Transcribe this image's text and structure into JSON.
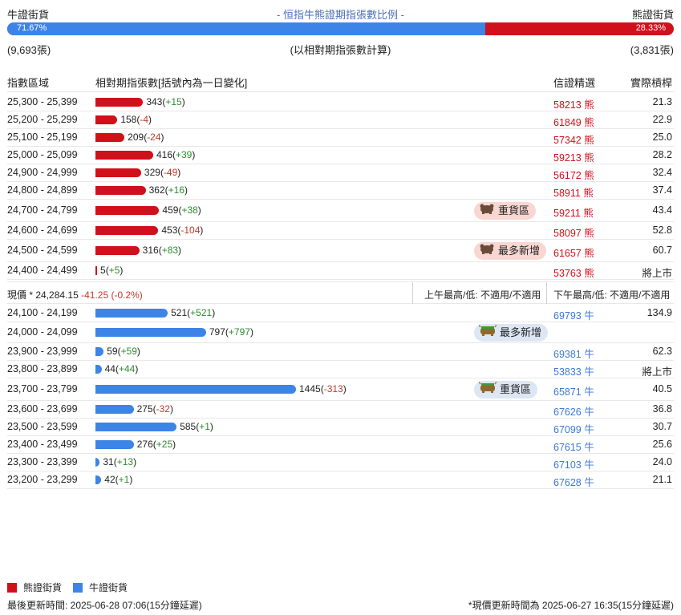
{
  "header": {
    "bull_label": "牛證街貨",
    "title": "- 恒指牛熊證期指張數比例 -",
    "bear_label": "熊證街貨",
    "bull_pct_text": "71.67%",
    "bear_pct_text": "28.33%",
    "bull_fraction": 0.7167,
    "bull_count": "(9,693張)",
    "note": "(以相對期指張數計算)",
    "bear_count": "(3,831張)"
  },
  "columns": {
    "range": "指數區域",
    "contracts": "相對期指張數[括號內為一日變化]",
    "warrant": "信證精選",
    "leverage": "實際槓桿"
  },
  "colors": {
    "bear": "#d0101b",
    "bull": "#3c84e8",
    "positive": "#2e8b2e",
    "negative": "#c0392b"
  },
  "bear_rows": [
    {
      "range": "25,300 - 25,399",
      "value": 343,
      "amount": "343",
      "change": "+15",
      "code": "58213",
      "type": "熊",
      "leverage": "21.3",
      "badge": ""
    },
    {
      "range": "25,200 - 25,299",
      "value": 158,
      "amount": "158",
      "change": "-4",
      "code": "61849",
      "type": "熊",
      "leverage": "22.9",
      "badge": ""
    },
    {
      "range": "25,100 - 25,199",
      "value": 209,
      "amount": "209",
      "change": "-24",
      "code": "57342",
      "type": "熊",
      "leverage": "25.0",
      "badge": ""
    },
    {
      "range": "25,000 - 25,099",
      "value": 416,
      "amount": "416",
      "change": "+39",
      "code": "59213",
      "type": "熊",
      "leverage": "28.2",
      "badge": ""
    },
    {
      "range": "24,900 - 24,999",
      "value": 329,
      "amount": "329",
      "change": "-49",
      "code": "56172",
      "type": "熊",
      "leverage": "32.4",
      "badge": ""
    },
    {
      "range": "24,800 - 24,899",
      "value": 362,
      "amount": "362",
      "change": "+16",
      "code": "58911",
      "type": "熊",
      "leverage": "37.4",
      "badge": ""
    },
    {
      "range": "24,700 - 24,799",
      "value": 459,
      "amount": "459",
      "change": "+38",
      "code": "59211",
      "type": "熊",
      "leverage": "43.4",
      "badge": "重貨區"
    },
    {
      "range": "24,600 - 24,699",
      "value": 453,
      "amount": "453",
      "change": "-104",
      "code": "58097",
      "type": "熊",
      "leverage": "52.8",
      "badge": ""
    },
    {
      "range": "24,500 - 24,599",
      "value": 316,
      "amount": "316",
      "change": "+83",
      "code": "61657",
      "type": "熊",
      "leverage": "60.7",
      "badge": "最多新增"
    },
    {
      "range": "24,400 - 24,499",
      "value": 5,
      "amount": "5",
      "change": "+5",
      "code": "53763",
      "type": "熊",
      "leverage": "將上市",
      "badge": ""
    }
  ],
  "price": {
    "label": "現價 *",
    "value": "24,284.15",
    "change": "-41.25 (-0.2%)",
    "am": "上午最高/低: 不適用/不適用",
    "pm": "下午最高/低: 不適用/不適用"
  },
  "bull_rows": [
    {
      "range": "24,100 - 24,199",
      "value": 521,
      "amount": "521",
      "change": "+521",
      "code": "69793",
      "type": "牛",
      "leverage": "134.9",
      "badge": ""
    },
    {
      "range": "24,000 - 24,099",
      "value": 797,
      "amount": "797",
      "change": "+797",
      "code": "",
      "type": "",
      "leverage": "",
      "badge": "最多新增"
    },
    {
      "range": "23,900 - 23,999",
      "value": 59,
      "amount": "59",
      "change": "+59",
      "code": "69381",
      "type": "牛",
      "leverage": "62.3",
      "badge": ""
    },
    {
      "range": "23,800 - 23,899",
      "value": 44,
      "amount": "44",
      "change": "+44",
      "code": "53833",
      "type": "牛",
      "leverage": "將上市",
      "badge": ""
    },
    {
      "range": "23,700 - 23,799",
      "value": 1445,
      "amount": "1445",
      "change": "-313",
      "code": "65871",
      "type": "牛",
      "leverage": "40.5",
      "badge": "重貨區"
    },
    {
      "range": "23,600 - 23,699",
      "value": 275,
      "amount": "275",
      "change": "-32",
      "code": "67626",
      "type": "牛",
      "leverage": "36.8",
      "badge": ""
    },
    {
      "range": "23,500 - 23,599",
      "value": 585,
      "amount": "585",
      "change": "+1",
      "code": "67099",
      "type": "牛",
      "leverage": "30.7",
      "badge": ""
    },
    {
      "range": "23,400 - 23,499",
      "value": 276,
      "amount": "276",
      "change": "+25",
      "code": "67615",
      "type": "牛",
      "leverage": "25.6",
      "badge": ""
    },
    {
      "range": "23,300 - 23,399",
      "value": 31,
      "amount": "31",
      "change": "+13",
      "code": "67103",
      "type": "牛",
      "leverage": "24.0",
      "badge": ""
    },
    {
      "range": "23,200 - 23,299",
      "value": 42,
      "amount": "42",
      "change": "+1",
      "code": "67628",
      "type": "牛",
      "leverage": "21.1",
      "badge": ""
    }
  ],
  "legend": {
    "bear": "熊證街貨",
    "bull": "牛證街貨"
  },
  "footer": {
    "updated": "最後更新時間: 2025-06-28 07:06(15分鐘延遲)",
    "price_updated": "*現價更新時間為 2025-06-27 16:35(15分鐘延遲)"
  }
}
